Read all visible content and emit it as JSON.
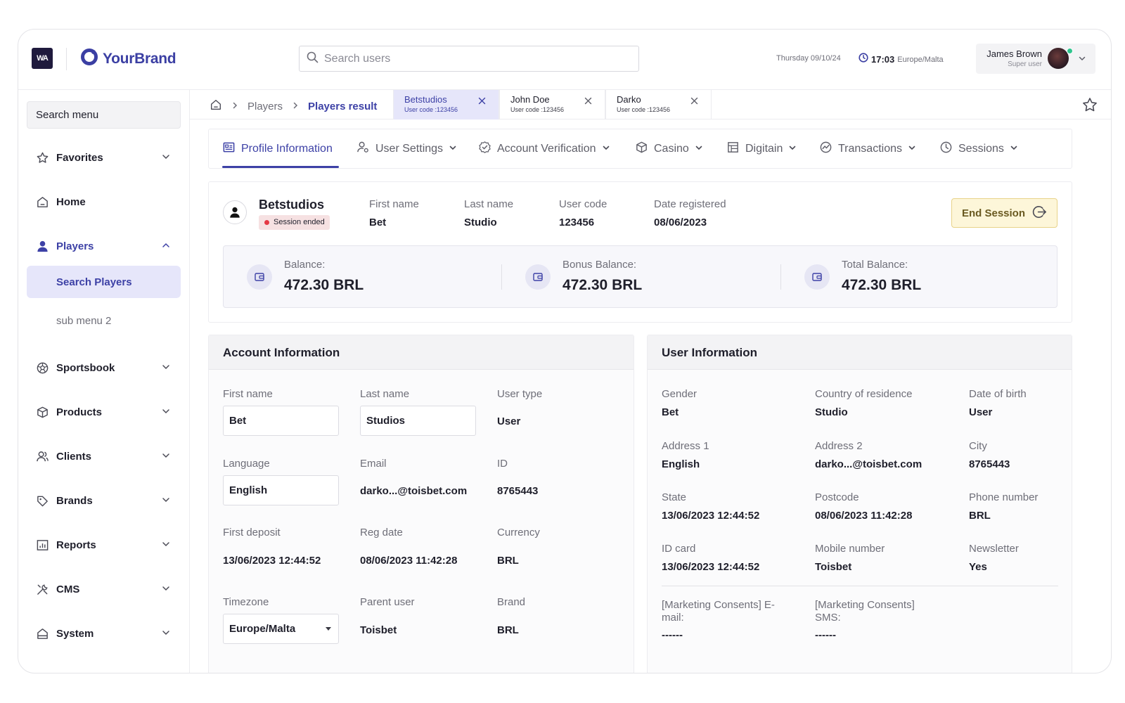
{
  "header": {
    "wa_logo": "WA",
    "brand": "YourBrand",
    "search_placeholder": "Search users",
    "date": "Thursday  09/10/24",
    "time": "17:03",
    "timezone": "Europe/Malta",
    "user_name": "James Brown",
    "user_role": "Super user"
  },
  "sidebar": {
    "search_menu": "Search menu",
    "favorites": "Favorites",
    "home": "Home",
    "players": "Players",
    "search_players": "Search Players",
    "sub_menu_2": "sub menu 2",
    "sportsbook": "Sportsbook",
    "products": "Products",
    "clients": "Clients",
    "brands": "Brands",
    "reports": "Reports",
    "cms": "CMS",
    "system": "System"
  },
  "breadcrumb": {
    "players": "Players",
    "current": "Players result"
  },
  "user_tabs": [
    {
      "name": "Betstudios",
      "code": "User code :123456"
    },
    {
      "name": "John Doe",
      "code": "User code :123456"
    },
    {
      "name": "Darko",
      "code": "User code :123456"
    }
  ],
  "profile_tabs": {
    "profile": "Profile Information",
    "settings": "User Settings",
    "verification": "Account Verification",
    "casino": "Casino",
    "digitain": "Digitain",
    "transactions": "Transactions",
    "sessions": "Sessions"
  },
  "profile": {
    "name": "Betstudios",
    "status": "Session ended",
    "first_name_label": "First name",
    "first_name": "Bet",
    "last_name_label": "Last name",
    "last_name": "Studio",
    "user_code_label": "User code",
    "user_code": "123456",
    "date_registered_label": "Date registered",
    "date_registered": "08/06/2023",
    "end_session": "End Session"
  },
  "balances": {
    "balance_label": "Balance:",
    "balance": "472.30 BRL",
    "bonus_label": "Bonus Balance:",
    "bonus": "472.30 BRL",
    "total_label": "Total Balance:",
    "total": "472.30 BRL"
  },
  "account_info": {
    "title": "Account Information",
    "first_name_label": "First name",
    "first_name": "Bet",
    "last_name_label": "Last name",
    "last_name": "Studios",
    "user_type_label": "User type",
    "user_type": "User",
    "language_label": "Language",
    "language": "English",
    "email_label": "Email",
    "email": "darko...@toisbet.com",
    "id_label": "ID",
    "id": "8765443",
    "first_deposit_label": "First deposit",
    "first_deposit": "13/06/2023 12:44:52",
    "reg_date_label": "Reg date",
    "reg_date": "08/06/2023 11:42:28",
    "currency_label": "Currency",
    "currency": "BRL",
    "timezone_label": "Timezone",
    "timezone": "Europe/Malta",
    "parent_user_label": "Parent user",
    "parent_user": "Toisbet",
    "brand_label": "Brand",
    "brand": "BRL"
  },
  "user_info": {
    "title": "User Information",
    "gender_label": "Gender",
    "gender": "Bet",
    "country_label": "Country of residence",
    "country": "Studio",
    "dob_label": "Date of birth",
    "dob": "User",
    "address1_label": "Address 1",
    "address1": "English",
    "address2_label": "Address 2",
    "address2": "darko...@toisbet.com",
    "city_label": "City",
    "city": "8765443",
    "state_label": "State",
    "state": "13/06/2023 12:44:52",
    "postcode_label": "Postcode",
    "postcode": "08/06/2023 11:42:28",
    "phone_label": "Phone number",
    "phone": "BRL",
    "idcard_label": "ID card",
    "idcard": "13/06/2023 12:44:52",
    "mobile_label": "Mobile number",
    "mobile": "Toisbet",
    "newsletter_label": "Newsletter",
    "newsletter": "Yes",
    "mc_email_label": "[Marketing Consents] E-mail:",
    "mc_email": "------",
    "mc_sms_label": "[Marketing Consents] SMS:",
    "mc_sms": "------"
  },
  "colors": {
    "accent": "#3d41a6",
    "brand": "#3b3fa3",
    "selected_bg": "#e6e6fa",
    "session_ended": "#e53945",
    "end_session_bg": "#fdf6d9",
    "online": "#2fc58e"
  }
}
